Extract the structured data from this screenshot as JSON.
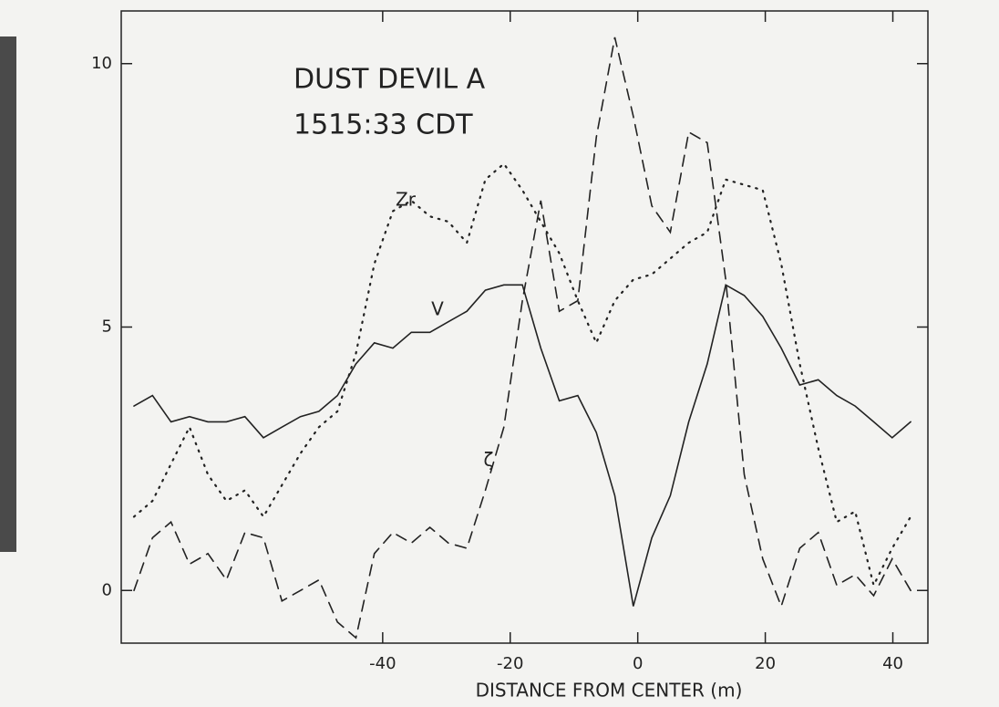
{
  "chart_data": {
    "type": "line",
    "annotations": [
      "DUST DEVIL A",
      "1515:33 CDT"
    ],
    "xlabel": "DISTANCE FROM CENTER (m)",
    "x": [
      -79,
      -76.1,
      -73.2,
      -70.3,
      -67.4,
      -64.5,
      -61.6,
      -58.7,
      -55.8,
      -52.9,
      -50,
      -47.1,
      -44.2,
      -41.3,
      -38.4,
      -35.5,
      -32.6,
      -29.7,
      -26.8,
      -23.9,
      -21,
      -18.1,
      -15.2,
      -12.3,
      -9.4,
      -6.5,
      -3.6,
      -0.7,
      2.2,
      5.1,
      8,
      10.9,
      13.8,
      16.7,
      19.6,
      22.5,
      25.4,
      28.3,
      31.2,
      34.1,
      37,
      39.9,
      42.8
    ],
    "series": [
      {
        "name": "V",
        "color": "#222222",
        "style": "solid",
        "values": [
          3.5,
          3.7,
          3.2,
          3.3,
          3.2,
          3.2,
          3.3,
          2.9,
          3.1,
          3.3,
          3.4,
          3.7,
          4.3,
          4.7,
          4.6,
          4.9,
          4.9,
          5.1,
          5.3,
          5.7,
          5.8,
          5.8,
          4.6,
          3.6,
          3.7,
          3.0,
          1.8,
          -0.3,
          1.0,
          1.8,
          3.2,
          4.3,
          5.8,
          5.6,
          5.2,
          4.6,
          3.9,
          4.0,
          3.7,
          3.5,
          3.2,
          2.9,
          3.2
        ]
      },
      {
        "name": "Zr",
        "color": "#222222",
        "style": "dotted",
        "values": [
          1.4,
          1.7,
          2.4,
          3.1,
          2.2,
          1.7,
          1.9,
          1.4,
          2.0,
          2.6,
          3.1,
          3.4,
          4.5,
          6.2,
          7.2,
          7.4,
          7.1,
          7.0,
          6.6,
          7.8,
          8.1,
          7.6,
          7.0,
          6.4,
          5.5,
          4.7,
          5.5,
          5.9,
          6.0,
          6.3,
          6.6,
          6.8,
          7.8,
          7.7,
          7.6,
          6.2,
          4.3,
          2.7,
          1.3,
          1.5,
          0.1,
          0.8,
          1.4
        ]
      },
      {
        "name": "ζ",
        "color": "#222222",
        "style": "dashed",
        "values": [
          0.0,
          1.0,
          1.3,
          0.5,
          0.7,
          0.2,
          1.1,
          1.0,
          -0.2,
          0.0,
          0.2,
          -0.6,
          -0.9,
          0.7,
          1.1,
          0.9,
          1.2,
          0.9,
          0.8,
          1.9,
          3.1,
          5.5,
          7.4,
          5.3,
          5.5,
          8.6,
          10.5,
          9.0,
          7.3,
          6.8,
          8.7,
          8.5,
          5.9,
          2.2,
          0.6,
          -0.3,
          0.8,
          1.1,
          0.1,
          0.3,
          -0.1,
          0.6,
          0.0
        ]
      }
    ],
    "xlim": [
      -81,
      45.5
    ],
    "xticks": [
      -40,
      -20,
      0,
      20,
      40
    ],
    "ylim": [
      -1,
      11
    ],
    "yticks": [
      0,
      5,
      10
    ]
  }
}
